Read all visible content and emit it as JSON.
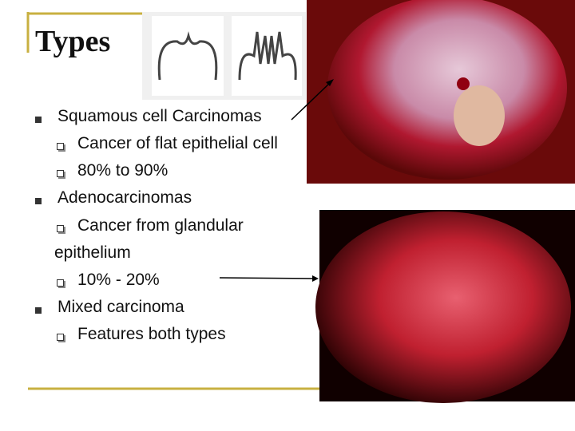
{
  "title": "Types",
  "bullets": [
    {
      "text": "Squamous cell Carcinomas",
      "sub": [
        "Cancer of flat epithelial cell",
        "80% to 90%"
      ]
    },
    {
      "text": "Adenocarcinomas",
      "sub": [
        "Cancer from glandular epithelium",
        "10% - 20%"
      ]
    },
    {
      "text": "Mixed carcinoma",
      "sub": [
        "Features both types"
      ]
    }
  ]
}
